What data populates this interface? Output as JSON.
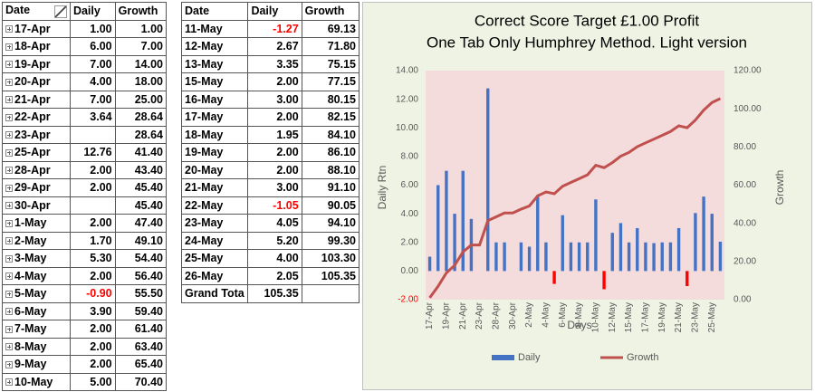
{
  "table_left": {
    "header": [
      "Date",
      "Daily",
      "Growth"
    ],
    "rows": [
      [
        "17-Apr",
        "1.00",
        "1.00"
      ],
      [
        "18-Apr",
        "6.00",
        "7.00"
      ],
      [
        "19-Apr",
        "7.00",
        "14.00"
      ],
      [
        "20-Apr",
        "4.00",
        "18.00"
      ],
      [
        "21-Apr",
        "7.00",
        "25.00"
      ],
      [
        "22-Apr",
        "3.64",
        "28.64"
      ],
      [
        "23-Apr",
        null,
        "28.64"
      ],
      [
        "25-Apr",
        "12.76",
        "41.40"
      ],
      [
        "28-Apr",
        "2.00",
        "43.40"
      ],
      [
        "29-Apr",
        "2.00",
        "45.40"
      ],
      [
        "30-Apr",
        null,
        "45.40"
      ],
      [
        "1-May",
        "2.00",
        "47.40"
      ],
      [
        "2-May",
        "1.70",
        "49.10"
      ],
      [
        "3-May",
        "5.30",
        "54.40"
      ],
      [
        "4-May",
        "2.00",
        "56.40"
      ],
      [
        "5-May",
        "-0.90",
        "55.50"
      ],
      [
        "6-May",
        "3.90",
        "59.40"
      ],
      [
        "7-May",
        "2.00",
        "61.40"
      ],
      [
        "8-May",
        "2.00",
        "63.40"
      ],
      [
        "9-May",
        "2.00",
        "65.40"
      ],
      [
        "10-May",
        "5.00",
        "70.40"
      ]
    ]
  },
  "table_right": {
    "header": [
      "Date",
      "Daily",
      "Growth"
    ],
    "rows": [
      [
        "11-May",
        "-1.27",
        "69.13"
      ],
      [
        "12-May",
        "2.67",
        "71.80"
      ],
      [
        "13-May",
        "3.35",
        "75.15"
      ],
      [
        "15-May",
        "2.00",
        "77.15"
      ],
      [
        "16-May",
        "3.00",
        "80.15"
      ],
      [
        "17-May",
        "2.00",
        "82.15"
      ],
      [
        "18-May",
        "1.95",
        "84.10"
      ],
      [
        "19-May",
        "2.00",
        "86.10"
      ],
      [
        "20-May",
        "2.00",
        "88.10"
      ],
      [
        "21-May",
        "3.00",
        "91.10"
      ],
      [
        "22-May",
        "-1.05",
        "90.05"
      ],
      [
        "23-May",
        "4.05",
        "94.10"
      ],
      [
        "24-May",
        "5.20",
        "99.30"
      ],
      [
        "25-May",
        "4.00",
        "103.30"
      ],
      [
        "26-May",
        "2.05",
        "105.35"
      ],
      [
        "Grand Tota",
        "105.35",
        null
      ]
    ]
  },
  "chart_data": {
    "type": "bar-line",
    "title": [
      "Correct Score Target £1.00 Profit",
      "One Tab Only Humphrey Method. Light version"
    ],
    "x_label": "Days",
    "y_label": "Daily Rtn",
    "y2_label": "Growth",
    "categories": [
      "17-Apr",
      null,
      "19-Apr",
      null,
      "21-Apr",
      null,
      "23-Apr",
      null,
      "28-Apr",
      null,
      "30-Apr",
      null,
      "2-May",
      null,
      "4-May",
      null,
      "6-May",
      null,
      "8-May",
      null,
      "10-May",
      null,
      "12-May",
      null,
      "15-May",
      null,
      "17-May",
      null,
      "19-May",
      null,
      "21-May",
      null,
      "23-May",
      null,
      "25-May",
      null
    ],
    "series": [
      {
        "name": "Daily",
        "type": "bar",
        "color": "#4472c4",
        "negative_color": "#ff0000",
        "values": [
          1,
          6,
          7,
          4,
          7,
          3.64,
          null,
          12.76,
          2,
          2,
          null,
          2,
          1.7,
          5.3,
          2,
          -0.9,
          3.9,
          2,
          2,
          2,
          5,
          -1.27,
          2.67,
          3.35,
          2,
          3,
          2,
          1.95,
          2,
          2,
          3,
          -1.05,
          4.05,
          5.2,
          4,
          2.05
        ]
      },
      {
        "name": "Growth",
        "type": "line",
        "axis": "y2",
        "color": "#c0504d",
        "values": [
          1,
          7,
          14,
          18,
          25,
          28.64,
          28.64,
          41.4,
          43.4,
          45.4,
          45.4,
          47.4,
          49.1,
          54.4,
          56.4,
          55.5,
          59.4,
          61.4,
          63.4,
          65.4,
          70.4,
          69.13,
          71.8,
          75.15,
          77.15,
          80.15,
          82.15,
          84.1,
          86.1,
          88.1,
          91.1,
          90.05,
          94.1,
          99.3,
          103.3,
          105.35
        ]
      }
    ],
    "ylim": [
      -2,
      14
    ],
    "yticks": [
      {
        "value": -2,
        "label": "-2.00"
      },
      {
        "value": 0,
        "label": "0.00"
      },
      {
        "value": 2,
        "label": "2.00"
      },
      {
        "value": 4,
        "label": "4.00"
      },
      {
        "value": 6,
        "label": "6.00"
      },
      {
        "value": 8,
        "label": "8.00"
      },
      {
        "value": 10,
        "label": "10.00"
      },
      {
        "value": 12,
        "label": "12.00"
      },
      {
        "value": 14,
        "label": "14.00"
      }
    ],
    "y2lim": [
      0,
      120
    ],
    "y2ticks": [
      {
        "value": 0,
        "label": "0.00"
      },
      {
        "value": 20,
        "label": "20.00"
      },
      {
        "value": 40,
        "label": "40.00"
      },
      {
        "value": 60,
        "label": "60.00"
      },
      {
        "value": 80,
        "label": "80.00"
      },
      {
        "value": 100,
        "label": "100.00"
      },
      {
        "value": 120,
        "label": "120.00"
      }
    ],
    "legend": "bottom"
  }
}
